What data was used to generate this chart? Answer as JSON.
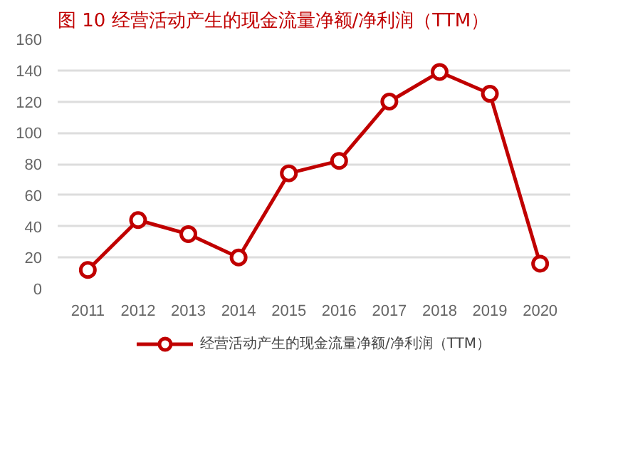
{
  "chart_data": {
    "type": "line",
    "title": "图 10 经营活动产生的现金流量净额/净利润（TTM）",
    "categories": [
      "2011",
      "2012",
      "2013",
      "2014",
      "2015",
      "2016",
      "2017",
      "2018",
      "2019",
      "2020"
    ],
    "series": [
      {
        "name": "经营活动产生的现金流量净额/净利润（TTM）",
        "color": "#c00000",
        "values": [
          12,
          44,
          35,
          20,
          74,
          82,
          120,
          139,
          125,
          16
        ]
      }
    ],
    "ylim": [
      0,
      160
    ],
    "yticks": [
      0,
      20,
      40,
      60,
      80,
      100,
      120,
      140,
      160
    ],
    "grid": "y",
    "legend": "bottom",
    "marker": "circle",
    "line_style": "solid"
  }
}
